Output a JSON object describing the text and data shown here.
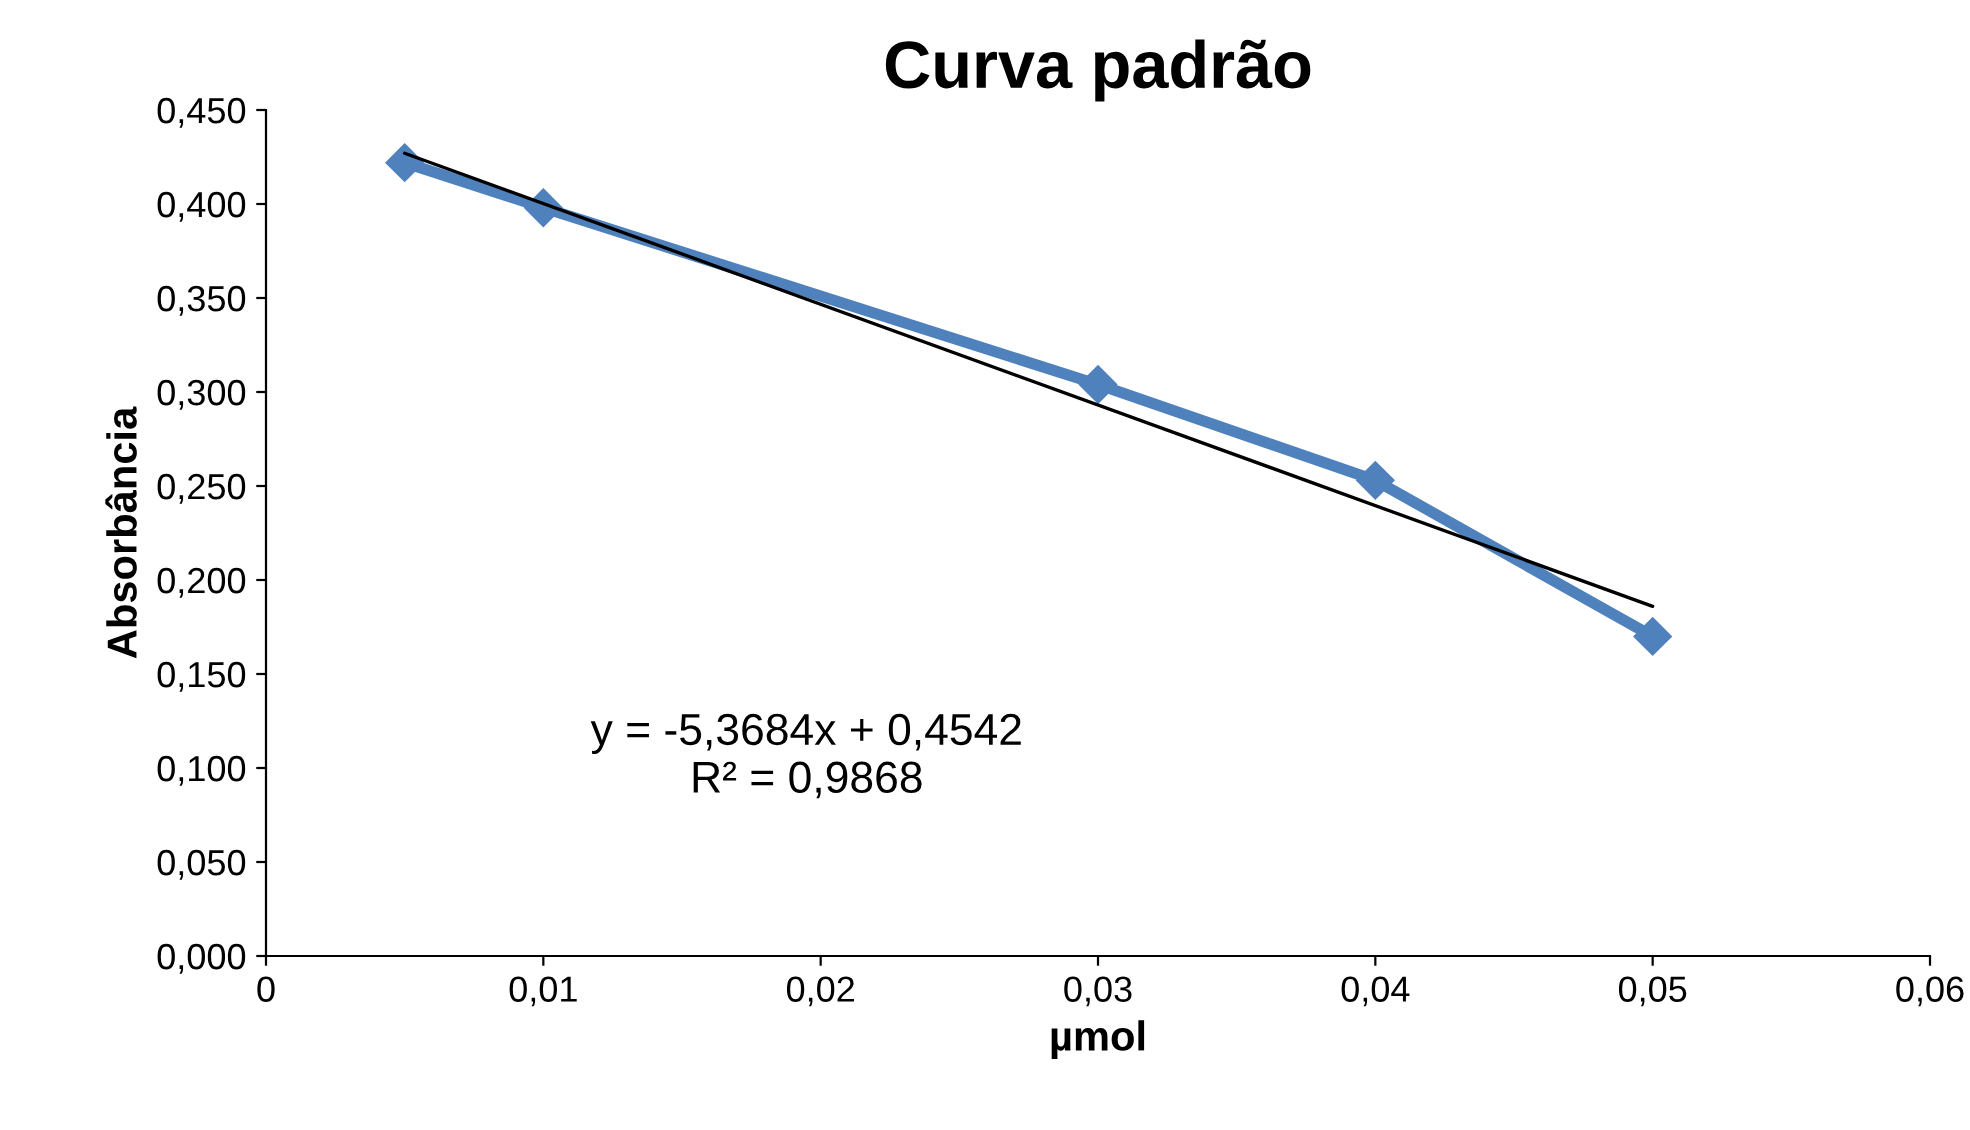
{
  "chart_data": {
    "type": "line",
    "title": "Curva padrão",
    "xlabel": "µmol",
    "ylabel": "Absorbância",
    "x": [
      0.005,
      0.01,
      0.03,
      0.04,
      0.05
    ],
    "series": [
      {
        "color": "#4f81bd",
        "values": [
          0.422,
          0.398,
          0.304,
          0.253,
          0.17
        ],
        "marker": "diamond",
        "line_style": "solid"
      },
      {
        "type": "line",
        "color": "#000000",
        "x": [
          0.005,
          0.05
        ],
        "values": [
          0.427,
          0.186
        ],
        "marker": "none",
        "line_style": "solid"
      }
    ],
    "xlim": [
      0,
      0.06
    ],
    "ylim": [
      0,
      0.45
    ],
    "xticks": [
      0,
      {
        "value": 0.01,
        "label": "0,01"
      },
      {
        "value": 0.02,
        "label": "0,02"
      },
      {
        "value": 0.03,
        "label": "0,03"
      },
      {
        "value": 0.04,
        "label": "0,04"
      },
      {
        "value": 0.05,
        "label": "0,05"
      },
      {
        "value": 0.06,
        "label": "0,06"
      }
    ],
    "yticks": [
      {
        "value": 0,
        "label": "0,000"
      },
      {
        "value": 0.05,
        "label": "0,050"
      },
      {
        "value": 0.1,
        "label": "0,100"
      },
      {
        "value": 0.15,
        "label": "0,150"
      },
      {
        "value": 0.2,
        "label": "0,200"
      },
      {
        "value": 0.25,
        "label": "0,250"
      },
      {
        "value": 0.3,
        "label": "0,300"
      },
      {
        "value": 0.35,
        "label": "0,350"
      },
      {
        "value": 0.4,
        "label": "0,400"
      },
      {
        "value": 0.45,
        "label": "0,450"
      }
    ],
    "annotations": [
      "y = -5,3684x + 0,4542\nR² = 0,9868"
    ],
    "grid": false,
    "legend": false
  }
}
